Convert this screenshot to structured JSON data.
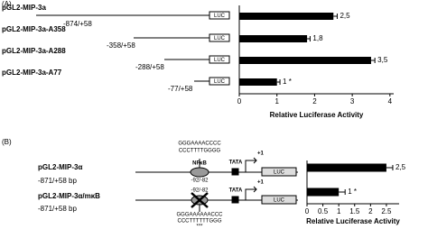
{
  "chart_data": [
    {
      "type": "bar",
      "orientation": "horizontal",
      "categories": [
        "pGL2-MIP-3a",
        "pGL2-MIP-3a-A358",
        "pGL2-MIP-3a-A288",
        "pGL2-MIP-3a-A77"
      ],
      "values": [
        2.5,
        1.8,
        3.5,
        1
      ],
      "value_labels": [
        "2,5",
        "1,8",
        "3,5",
        "1 *"
      ],
      "errors": [
        0.1,
        0.08,
        0.1,
        0.08
      ],
      "color": "#000000",
      "xlim": [
        0,
        4.1
      ],
      "xticks": [
        0,
        1,
        2,
        3,
        4
      ],
      "xlabel": "Relative Luciferase Activity",
      "annotations": [
        "(A)",
        "-874/+58",
        "-358/+58",
        "-288/+58",
        "-77/+58",
        "LUC"
      ]
    },
    {
      "type": "bar",
      "orientation": "horizontal",
      "categories": [
        "pGL2-MIP-3α",
        "pGL2-MIP-3α/mκB"
      ],
      "values": [
        2.5,
        1
      ],
      "value_labels": [
        "2,5",
        "1 *"
      ],
      "errors": [
        0.2,
        0.2
      ],
      "color": "#000000",
      "xlim": [
        0,
        2.9
      ],
      "xticks": [
        0,
        0.5,
        1,
        1.5,
        2,
        2.5
      ],
      "xlabel": "Relative Luciferase Activity",
      "annotations": [
        "(B)",
        "-871/+58 bp",
        "GGGAAAACCCC",
        "CCCTTTTGGGG",
        "NFκB",
        "-92/-82",
        "TATA",
        "+1",
        "LUC",
        "GGGAAAAAACCC",
        "CCCTTTTTTGGG",
        "***"
      ]
    }
  ]
}
